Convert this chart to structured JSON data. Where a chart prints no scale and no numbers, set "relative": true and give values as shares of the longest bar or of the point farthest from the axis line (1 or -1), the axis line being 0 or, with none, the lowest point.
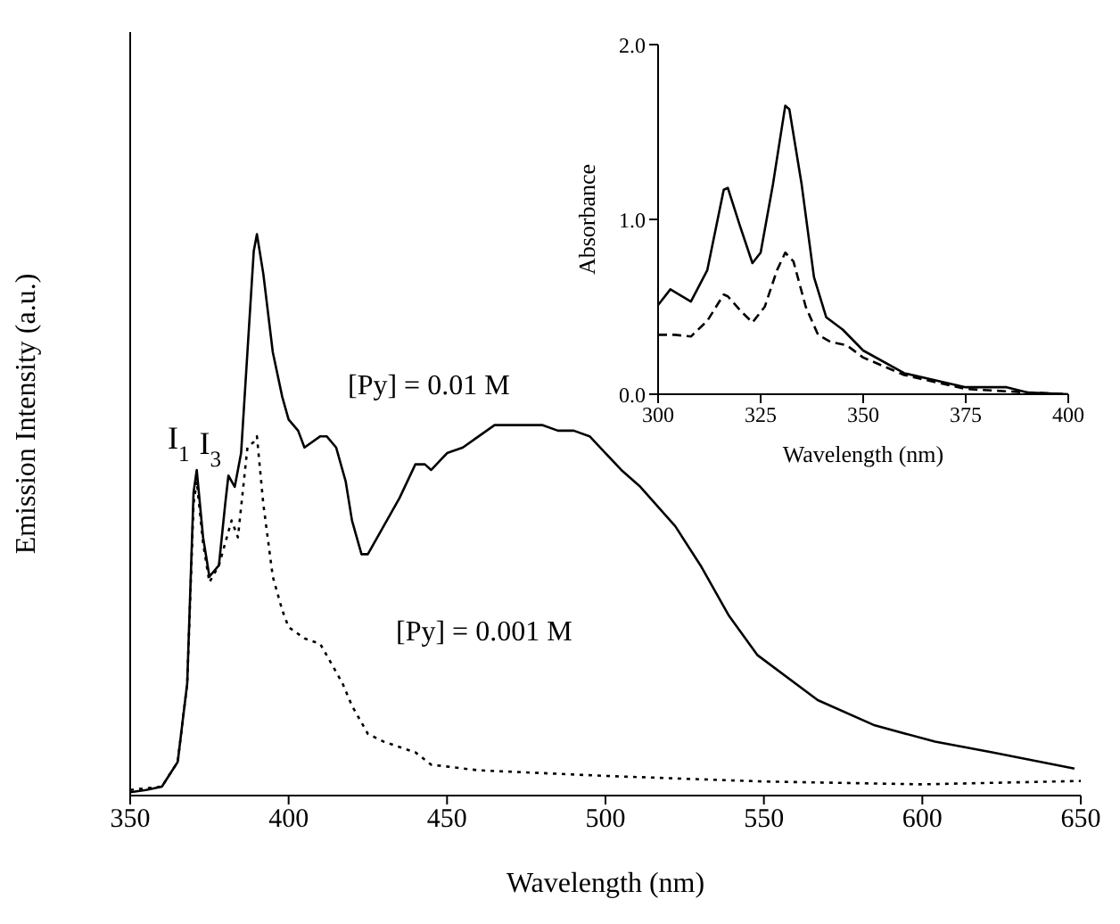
{
  "chart_data": [
    {
      "type": "line",
      "xlabel": "Wavelength (nm)",
      "ylabel": "Emission Intensity (a.u.)",
      "relative": true,
      "xlim": [
        350,
        650
      ],
      "xticks": [
        350,
        400,
        450,
        500,
        550,
        600,
        650
      ],
      "marker": "none",
      "annotations": [
        {
          "text": "I$_{1}$",
          "x": 371,
          "y": 0.58
        },
        {
          "text": "I$_{3}$",
          "x": 381,
          "y": 0.57
        }
      ],
      "series": [
        {
          "name": "[Py] = 0.01 M",
          "color": "#000000",
          "line_style": "solid",
          "x": [
            350,
            355,
            360,
            365,
            368,
            370,
            371,
            373,
            375,
            378,
            380,
            381,
            383,
            385,
            387,
            389,
            390,
            392,
            395,
            398,
            400,
            403,
            405,
            410,
            412,
            415,
            418,
            420,
            423,
            425,
            430,
            435,
            440,
            443,
            445,
            450,
            455,
            460,
            465,
            470,
            475,
            480,
            485,
            490,
            495,
            500,
            505,
            511,
            522,
            530,
            539,
            548,
            567,
            585,
            604,
            622,
            648
          ],
          "values": [
            0.006,
            0.01,
            0.016,
            0.06,
            0.2,
            0.54,
            0.58,
            0.46,
            0.39,
            0.41,
            0.52,
            0.57,
            0.55,
            0.61,
            0.79,
            0.97,
            1,
            0.93,
            0.79,
            0.71,
            0.67,
            0.65,
            0.62,
            0.64,
            0.64,
            0.62,
            0.56,
            0.49,
            0.43,
            0.43,
            0.48,
            0.53,
            0.59,
            0.59,
            0.58,
            0.61,
            0.62,
            0.64,
            0.66,
            0.66,
            0.66,
            0.66,
            0.65,
            0.65,
            0.64,
            0.61,
            0.58,
            0.55,
            0.48,
            0.41,
            0.32,
            0.25,
            0.17,
            0.125,
            0.096,
            0.077,
            0.048
          ]
        },
        {
          "name": "[Py] = 0.001 M",
          "color": "#000000",
          "line_style": "dotted",
          "x": [
            350,
            360,
            365,
            368,
            370,
            371,
            373,
            375,
            378,
            382,
            384,
            387,
            389,
            390,
            392,
            395,
            398,
            400,
            405,
            410,
            413,
            417,
            420,
            425,
            430,
            440,
            445,
            460,
            500,
            550,
            600,
            650
          ],
          "values": [
            0.01,
            0.016,
            0.06,
            0.2,
            0.52,
            0.56,
            0.45,
            0.38,
            0.41,
            0.49,
            0.46,
            0.62,
            0.63,
            0.64,
            0.52,
            0.39,
            0.33,
            0.3,
            0.28,
            0.27,
            0.24,
            0.2,
            0.16,
            0.11,
            0.096,
            0.077,
            0.055,
            0.045,
            0.035,
            0.025,
            0.02,
            0.026
          ]
        }
      ]
    },
    {
      "type": "line",
      "xlabel": "Wavelength (nm)",
      "ylabel": "Absorbance",
      "xlim": [
        300,
        400
      ],
      "ylim": [
        0,
        2
      ],
      "xticks": [
        300,
        325,
        350,
        375,
        400
      ],
      "yticks": [
        {
          "value": 0,
          "label": "0.0"
        },
        {
          "value": 1,
          "label": "1.0"
        },
        {
          "value": 2,
          "label": "2.0"
        }
      ],
      "marker": "none",
      "series": [
        {
          "color": "#000000",
          "line_style": "solid",
          "x": [
            300,
            303,
            308,
            312,
            316,
            317,
            320,
            323,
            325,
            328,
            331,
            332,
            335,
            338,
            341,
            345,
            350,
            360,
            375,
            385,
            390,
            400
          ],
          "values": [
            0.51,
            0.6,
            0.53,
            0.71,
            1.17,
            1.18,
            0.96,
            0.75,
            0.81,
            1.2,
            1.65,
            1.63,
            1.2,
            0.67,
            0.44,
            0.37,
            0.25,
            0.12,
            0.04,
            0.04,
            0.01,
            0
          ]
        },
        {
          "color": "#000000",
          "line_style": "dashed",
          "x": [
            300,
            304,
            308,
            312,
            316,
            317,
            320,
            323,
            326,
            329,
            331,
            333,
            336,
            339,
            342,
            346,
            350,
            360,
            375,
            390,
            400
          ],
          "values": [
            0.34,
            0.34,
            0.33,
            0.42,
            0.57,
            0.56,
            0.48,
            0.41,
            0.5,
            0.71,
            0.81,
            0.76,
            0.5,
            0.34,
            0.3,
            0.28,
            0.21,
            0.11,
            0.03,
            0.01,
            0
          ]
        }
      ]
    }
  ]
}
